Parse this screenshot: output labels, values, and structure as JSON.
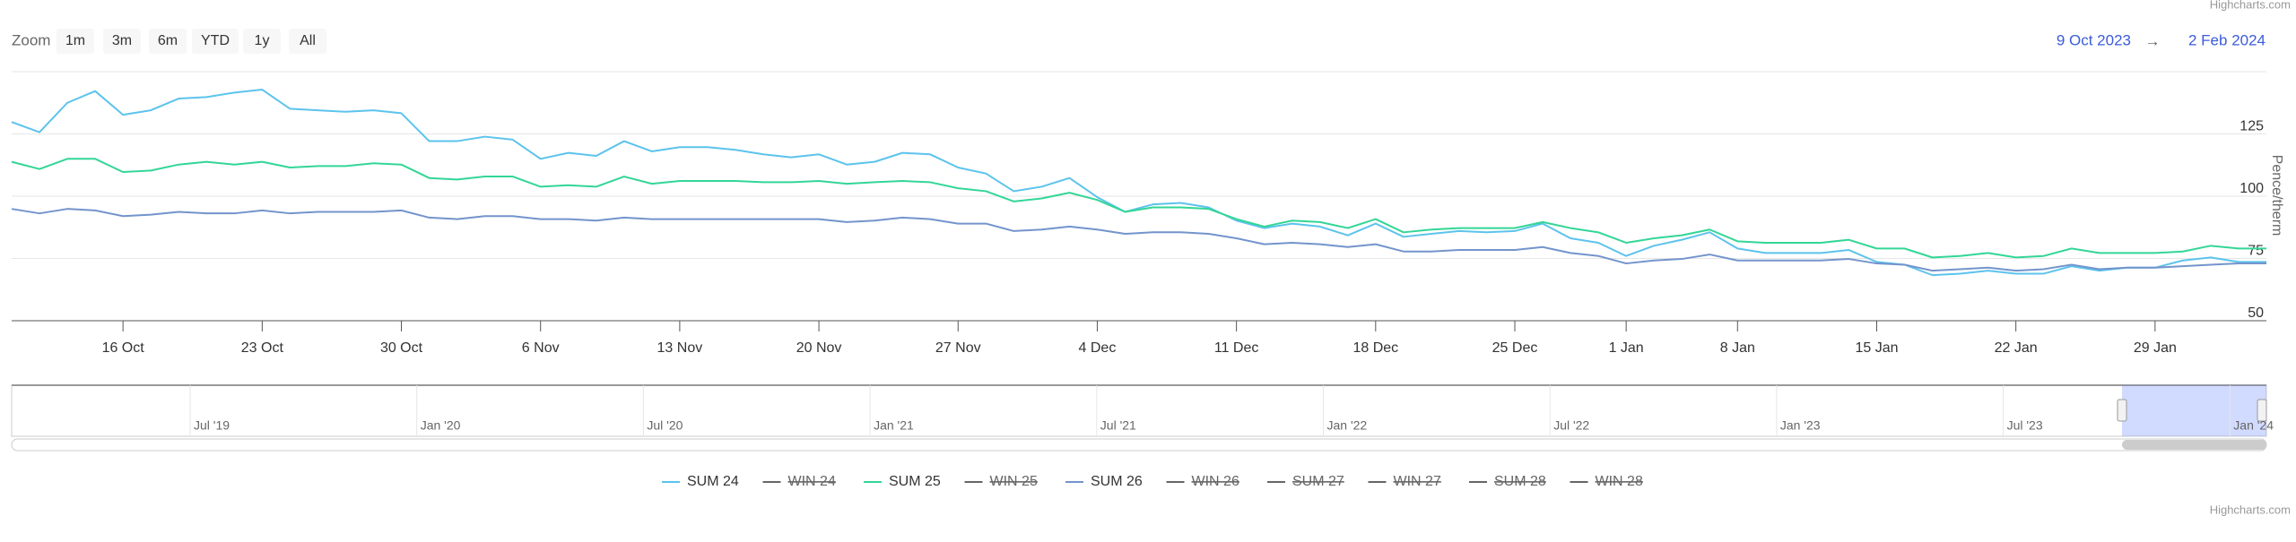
{
  "credits": "Highcharts.com",
  "range_selector": {
    "label": "Zoom",
    "buttons": [
      "1m",
      "3m",
      "6m",
      "YTD",
      "1y",
      "All"
    ]
  },
  "range": {
    "from": "9 Oct 2023",
    "separator": "→",
    "to": "2 Feb 2024"
  },
  "chart_data": {
    "type": "line",
    "categories": [
      null,
      null,
      null,
      null,
      "16 Oct",
      null,
      null,
      null,
      null,
      "23 Oct",
      null,
      null,
      null,
      null,
      "30 Oct",
      null,
      null,
      null,
      null,
      "6 Nov",
      null,
      null,
      null,
      null,
      "13 Nov",
      null,
      null,
      null,
      null,
      "20 Nov",
      null,
      null,
      null,
      null,
      "27 Nov",
      null,
      null,
      null,
      null,
      "4 Dec",
      null,
      null,
      null,
      null,
      "11 Dec",
      null,
      null,
      null,
      null,
      "18 Dec",
      null,
      null,
      null,
      null,
      "25 Dec",
      null,
      null,
      null,
      "1 Jan",
      null,
      null,
      null,
      "8 Jan",
      null,
      null,
      null,
      null,
      "15 Jan",
      null,
      null,
      null,
      null,
      "22 Jan",
      null,
      null,
      null,
      null,
      "29 Jan",
      null,
      null,
      null,
      null
    ],
    "series": [
      {
        "name": "SUM 24",
        "color": "#5cc3ec",
        "values": [
          129.8,
          125.7,
          137.5,
          142.2,
          132.7,
          134.5,
          139.2,
          139.8,
          141.6,
          142.8,
          135.1,
          134.5,
          133.9,
          134.5,
          133.3,
          122.1,
          122.1,
          123.9,
          122.7,
          115,
          117.4,
          116.2,
          122.1,
          118,
          119.7,
          119.7,
          118.6,
          116.8,
          115.6,
          116.8,
          112.7,
          113.8,
          117.4,
          116.8,
          111.5,
          109.1,
          102,
          103.8,
          107.3,
          99.6,
          93.7,
          96.7,
          97.3,
          95.5,
          90.2,
          87.2,
          89,
          87.8,
          84.3,
          89,
          83.7,
          84.9,
          86,
          85.5,
          86,
          89,
          83.1,
          81.3,
          76,
          80.1,
          82.5,
          85.5,
          79,
          77.2,
          77.2,
          77.2,
          78.4,
          73.6,
          72.5,
          68.3,
          68.9,
          70.1,
          68.9,
          68.9,
          71.9,
          70.1,
          71.3,
          71.3,
          74.2,
          75.4,
          73.6,
          73.6
        ]
      },
      {
        "name": "WIN 24",
        "visible": false
      },
      {
        "name": "SUM 25",
        "color": "#33d696",
        "values": [
          113.8,
          110.9,
          115,
          115,
          109.7,
          110.3,
          112.7,
          113.8,
          112.7,
          113.8,
          111.5,
          112.1,
          112.1,
          113.2,
          112.7,
          107.3,
          106.7,
          107.9,
          107.9,
          103.8,
          104.4,
          103.8,
          107.9,
          105,
          106.1,
          106.1,
          106.1,
          105.6,
          105.6,
          106.1,
          105,
          105.6,
          106.1,
          105.6,
          103.2,
          102,
          97.9,
          99.1,
          101.4,
          98.5,
          93.7,
          95.5,
          95.5,
          94.9,
          90.8,
          87.8,
          90.2,
          89.6,
          87.2,
          90.8,
          85.5,
          86.6,
          87.2,
          87.2,
          87.2,
          89.6,
          87.2,
          85.5,
          81.3,
          83.1,
          84.3,
          86.6,
          81.9,
          81.3,
          81.3,
          81.3,
          82.5,
          79,
          79,
          75.4,
          76,
          77.2,
          75.4,
          76,
          79,
          77.2,
          77.2,
          77.2,
          77.8,
          80.1,
          79,
          79
        ]
      },
      {
        "name": "WIN 25",
        "visible": false
      },
      {
        "name": "SUM 26",
        "color": "#7394cc",
        "values": [
          94.9,
          93.1,
          94.9,
          94.3,
          92,
          92.6,
          93.7,
          93.1,
          93.1,
          94.3,
          93.1,
          93.7,
          93.7,
          93.7,
          94.3,
          91.4,
          90.8,
          92,
          92,
          90.8,
          90.8,
          90.2,
          91.4,
          90.8,
          90.8,
          90.8,
          90.8,
          90.8,
          90.8,
          90.8,
          89.6,
          90.2,
          91.4,
          90.8,
          89,
          89,
          86,
          86.6,
          87.8,
          86.6,
          84.9,
          85.5,
          85.5,
          84.9,
          83.1,
          80.7,
          81.3,
          80.7,
          79.6,
          80.7,
          77.8,
          77.8,
          78.4,
          78.4,
          78.4,
          79.6,
          77.2,
          76,
          73,
          74.2,
          74.8,
          76.6,
          74.2,
          74.2,
          74.2,
          74.2,
          74.8,
          73,
          72.5,
          70.1,
          70.7,
          71.3,
          70.1,
          70.7,
          72.5,
          70.7,
          71.3,
          71.3,
          71.9,
          72.5,
          73,
          73
        ]
      },
      {
        "name": "WIN 26",
        "visible": false
      },
      {
        "name": "SUM 27",
        "visible": false
      },
      {
        "name": "WIN 27",
        "visible": false
      },
      {
        "name": "SUM 28",
        "visible": false
      },
      {
        "name": "WIN 28",
        "visible": false
      }
    ],
    "ylim": [
      50,
      150
    ],
    "yticks": [
      50,
      75,
      100,
      125
    ],
    "y_label": "Pence/therm",
    "grid": true
  },
  "navigator": {
    "labels": [
      "Jul '19",
      "Jan '20",
      "Jul '20",
      "Jan '21",
      "Jul '21",
      "Jan '22",
      "Jul '22",
      "Jan '23",
      "Jul '23",
      "Jan '24"
    ]
  }
}
